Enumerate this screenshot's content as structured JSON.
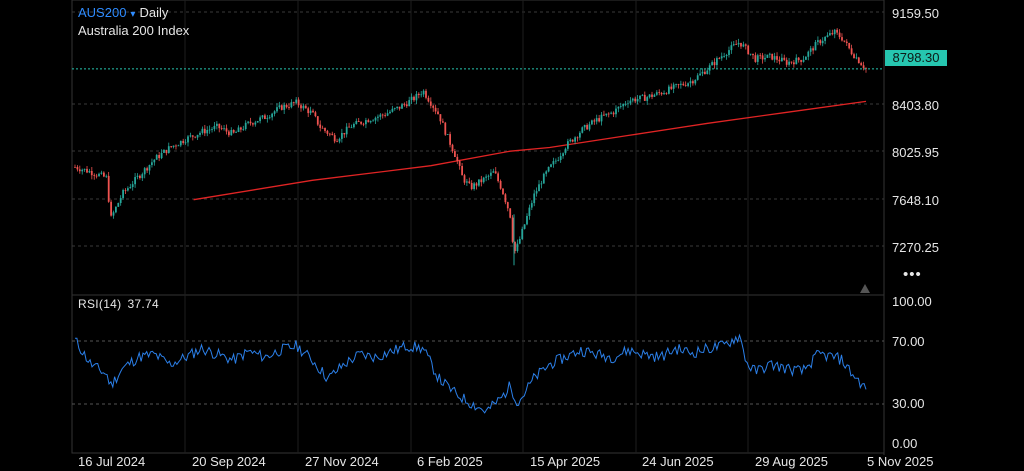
{
  "header": {
    "symbol": "AUS200",
    "caret": "▾",
    "interval": "Daily",
    "instrument_name": "Australia 200 Index"
  },
  "price_axis": {
    "ticks": [
      "9159.50",
      "8403.80",
      "8025.95",
      "7648.10",
      "7270.25"
    ],
    "last_price_label": "8798.30"
  },
  "rsi": {
    "label": "RSI(14)",
    "value": "37.74",
    "ticks": [
      "100.00",
      "70.00",
      "30.00",
      "0.00"
    ]
  },
  "time_axis": {
    "labels": [
      "16 Jul 2024",
      "20 Sep 2024",
      "27 Nov 2024",
      "6 Feb 2025",
      "15 Apr 2025",
      "24 Jun 2025",
      "29 Aug 2025",
      "5 Nov 2025"
    ]
  },
  "more_menu": {
    "icon": "more-dots-icon",
    "glyph": "•••"
  },
  "scroll_marker": {
    "icon": "triangle-up-icon"
  },
  "colors": {
    "accent_blue": "#2f8cff",
    "last_price": "#26c6b0",
    "ma_line": "#e02424",
    "rsi_line": "#2b7fe8",
    "candle_up": "#26a69a",
    "candle_down": "#ef5350",
    "grid": "#3a3a3a"
  },
  "chart_data": {
    "type": "candlestick",
    "price_range": [
      7100,
      9250
    ],
    "last_price": 8798.3,
    "close_path": [
      [
        0.0,
        7990
      ],
      [
        0.02,
        7950
      ],
      [
        0.04,
        7900
      ],
      [
        0.045,
        7560
      ],
      [
        0.06,
        7770
      ],
      [
        0.08,
        7910
      ],
      [
        0.1,
        8050
      ],
      [
        0.12,
        8150
      ],
      [
        0.14,
        8220
      ],
      [
        0.16,
        8280
      ],
      [
        0.18,
        8320
      ],
      [
        0.2,
        8260
      ],
      [
        0.22,
        8350
      ],
      [
        0.24,
        8400
      ],
      [
        0.26,
        8480
      ],
      [
        0.28,
        8520
      ],
      [
        0.3,
        8430
      ],
      [
        0.31,
        8320
      ],
      [
        0.33,
        8220
      ],
      [
        0.35,
        8330
      ],
      [
        0.37,
        8380
      ],
      [
        0.39,
        8420
      ],
      [
        0.41,
        8480
      ],
      [
        0.43,
        8560
      ],
      [
        0.44,
        8620
      ],
      [
        0.46,
        8420
      ],
      [
        0.47,
        8250
      ],
      [
        0.48,
        8100
      ],
      [
        0.49,
        7900
      ],
      [
        0.5,
        7820
      ],
      [
        0.52,
        7900
      ],
      [
        0.53,
        7950
      ],
      [
        0.54,
        7800
      ],
      [
        0.55,
        7600
      ],
      [
        0.555,
        7280
      ],
      [
        0.56,
        7350
      ],
      [
        0.57,
        7550
      ],
      [
        0.58,
        7750
      ],
      [
        0.59,
        7880
      ],
      [
        0.6,
        7980
      ],
      [
        0.61,
        8060
      ],
      [
        0.62,
        8160
      ],
      [
        0.64,
        8290
      ],
      [
        0.66,
        8380
      ],
      [
        0.68,
        8440
      ],
      [
        0.7,
        8540
      ],
      [
        0.72,
        8560
      ],
      [
        0.74,
        8600
      ],
      [
        0.76,
        8650
      ],
      [
        0.78,
        8700
      ],
      [
        0.8,
        8800
      ],
      [
        0.82,
        8920
      ],
      [
        0.84,
        9020
      ],
      [
        0.85,
        8950
      ],
      [
        0.86,
        8880
      ],
      [
        0.88,
        8900
      ],
      [
        0.9,
        8850
      ],
      [
        0.92,
        8880
      ],
      [
        0.94,
        9020
      ],
      [
        0.96,
        9100
      ],
      [
        0.97,
        9050
      ],
      [
        0.98,
        8950
      ],
      [
        1.0,
        8798
      ]
    ],
    "moving_average_path": [
      [
        0.15,
        7720
      ],
      [
        0.3,
        7880
      ],
      [
        0.45,
        8000
      ],
      [
        0.55,
        8120
      ],
      [
        0.6,
        8150
      ],
      [
        0.7,
        8250
      ],
      [
        0.8,
        8350
      ],
      [
        0.9,
        8440
      ],
      [
        1.0,
        8530
      ]
    ],
    "rsi_range": [
      0,
      100
    ],
    "rsi_path": [
      [
        0.0,
        72
      ],
      [
        0.02,
        55
      ],
      [
        0.04,
        48
      ],
      [
        0.045,
        40
      ],
      [
        0.06,
        52
      ],
      [
        0.08,
        60
      ],
      [
        0.1,
        62
      ],
      [
        0.12,
        55
      ],
      [
        0.14,
        60
      ],
      [
        0.16,
        66
      ],
      [
        0.18,
        62
      ],
      [
        0.2,
        58
      ],
      [
        0.22,
        64
      ],
      [
        0.24,
        60
      ],
      [
        0.26,
        65
      ],
      [
        0.28,
        68
      ],
      [
        0.3,
        58
      ],
      [
        0.32,
        45
      ],
      [
        0.34,
        55
      ],
      [
        0.36,
        62
      ],
      [
        0.38,
        60
      ],
      [
        0.4,
        64
      ],
      [
        0.42,
        68
      ],
      [
        0.44,
        66
      ],
      [
        0.46,
        45
      ],
      [
        0.48,
        35
      ],
      [
        0.5,
        28
      ],
      [
        0.52,
        22
      ],
      [
        0.54,
        32
      ],
      [
        0.55,
        40
      ],
      [
        0.56,
        28
      ],
      [
        0.58,
        45
      ],
      [
        0.6,
        55
      ],
      [
        0.62,
        60
      ],
      [
        0.64,
        65
      ],
      [
        0.66,
        62
      ],
      [
        0.68,
        60
      ],
      [
        0.7,
        65
      ],
      [
        0.72,
        62
      ],
      [
        0.74,
        60
      ],
      [
        0.76,
        66
      ],
      [
        0.78,
        63
      ],
      [
        0.8,
        66
      ],
      [
        0.82,
        68
      ],
      [
        0.84,
        75
      ],
      [
        0.85,
        55
      ],
      [
        0.86,
        50
      ],
      [
        0.88,
        55
      ],
      [
        0.9,
        52
      ],
      [
        0.92,
        50
      ],
      [
        0.94,
        62
      ],
      [
        0.96,
        60
      ],
      [
        0.97,
        58
      ],
      [
        0.98,
        50
      ],
      [
        1.0,
        37.74
      ]
    ]
  }
}
